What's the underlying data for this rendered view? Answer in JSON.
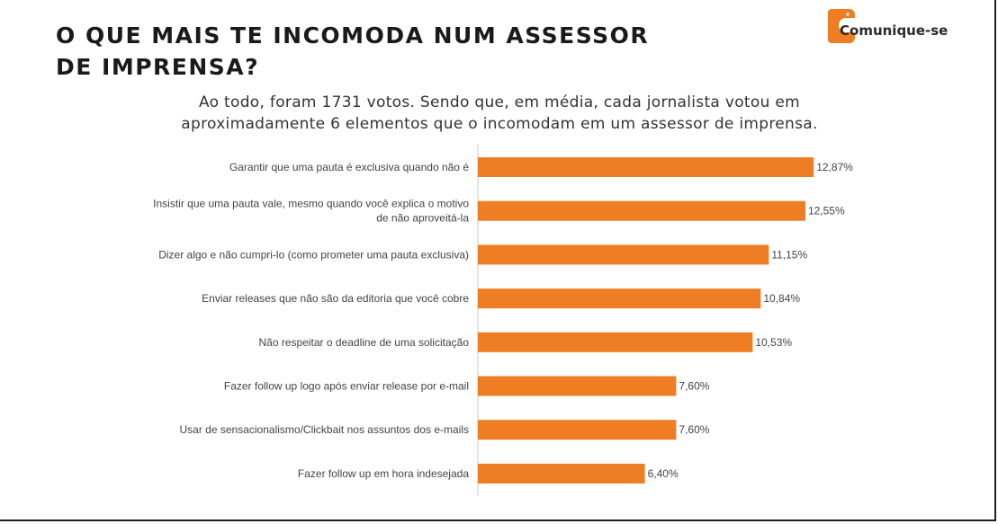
{
  "title_lines": [
    "O QUE MAIS TE INCOMODA NUM ASSESSOR",
    "DE IMPRENSA?"
  ],
  "logo": {
    "text": "Comunique-se",
    "icon": "logo-icon",
    "color": "#ef7d23"
  },
  "subtitle_lines": [
    "Ao todo, foram 1731 votos. Sendo que, em média, cada jornalista votou em",
    "aproximadamente 6 elementos que o incomodam em um assessor de imprensa."
  ],
  "colors": {
    "bar": "#ef7d23",
    "axis": "#c8c8c8",
    "text": "#444444"
  },
  "chart_data": {
    "type": "bar",
    "orientation": "horizontal",
    "title": "O QUE MAIS TE INCOMODA NUM ASSESSOR DE IMPRENSA?",
    "xlabel": "",
    "ylabel": "",
    "xlim": [
      0,
      13
    ],
    "unit": "%",
    "grid": false,
    "categories": [
      [
        "Garantir que uma pauta é exclusiva quando não é"
      ],
      [
        "Insistir que uma pauta vale, mesmo quando você explica o motivo",
        "de não aproveitá-la"
      ],
      [
        "Dizer algo e não cumpri-lo (como prometer uma pauta exclusiva)"
      ],
      [
        "Enviar releases que não são da editoria que você cobre"
      ],
      [
        "Não respeitar o deadline de uma solicitação"
      ],
      [
        "Fazer follow up logo após enviar release por e-mail"
      ],
      [
        "Usar de sensacionalismo/Clickbait nos assuntos dos e-mails"
      ],
      [
        "Fazer follow up em hora indesejada"
      ]
    ],
    "values": [
      12.87,
      12.55,
      11.15,
      10.84,
      10.53,
      7.6,
      7.6,
      6.4
    ],
    "value_labels": [
      "12,87%",
      "12,55%",
      "11,15%",
      "10,84%",
      "10,53%",
      "7,60%",
      "7,60%",
      "6,40%"
    ]
  }
}
